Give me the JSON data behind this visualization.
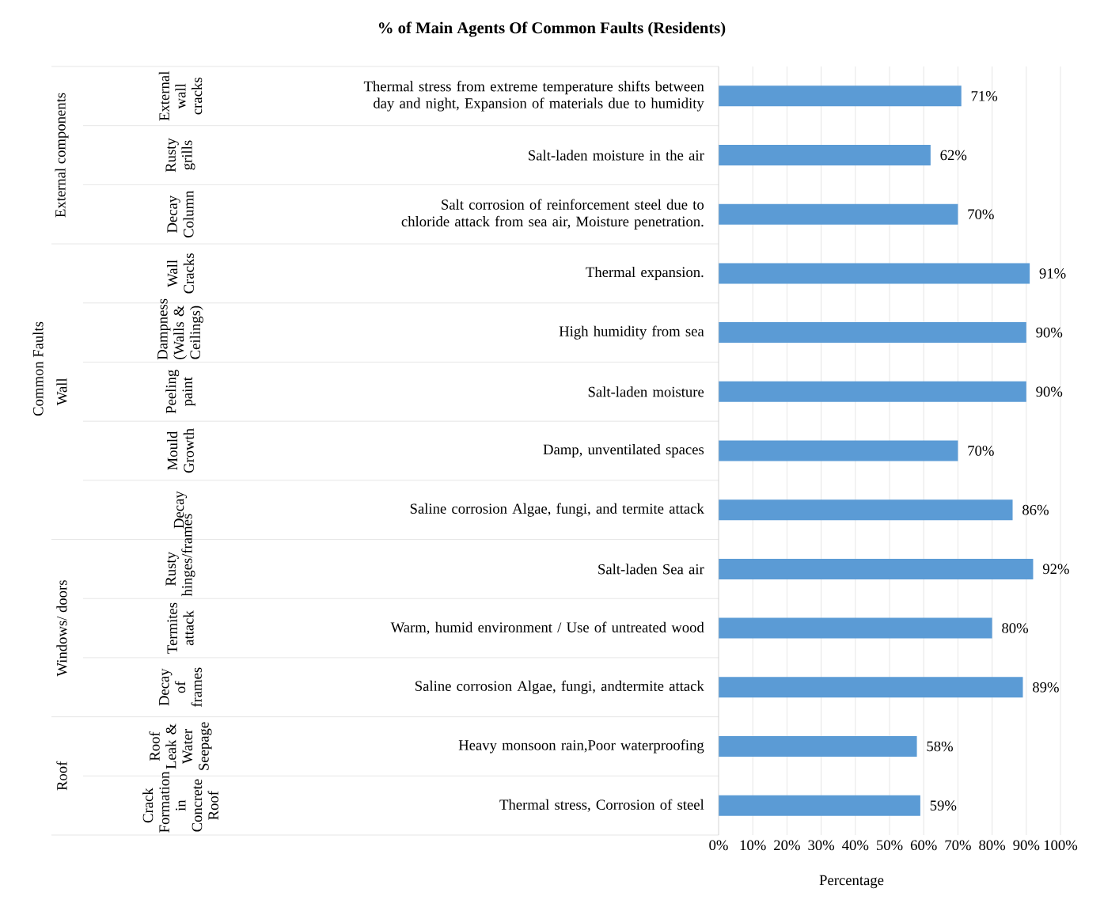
{
  "chart_data": {
    "type": "bar",
    "orientation": "horizontal",
    "title": "% of Main Agents Of Common Faults (Residents)",
    "xlabel": "Percentage",
    "categories": [
      "Thermal stress from extreme temperature shifts between day and night, Expansion of materials due to humidity",
      "Salt-laden moisture in the air",
      "Salt corrosion of reinforcement steel due to chloride attack from sea air, Moisture penetration.",
      "Thermal expansion.",
      "High humidity from sea",
      "Salt-laden moisture",
      "Damp, unventilated spaces",
      "Saline corrosion Algae, fungi, and termite attack",
      "Salt-laden Sea air",
      "Warm, humid environment / Use of untreated wood",
      "Saline corrosion Algae, fungi, andtermite attack",
      "Heavy monsoon rain,Poor waterproofing",
      "Thermal stress, Corrosion of steel"
    ],
    "values": [
      71,
      62,
      70,
      91,
      90,
      90,
      70,
      86,
      92,
      80,
      89,
      58,
      59
    ],
    "value_labels": [
      "71%",
      "62%",
      "70%",
      "91%",
      "90%",
      "90%",
      "70%",
      "86%",
      "92%",
      "80%",
      "89%",
      "58%",
      "59%"
    ],
    "color": "#5b9bd5",
    "xlim": [
      0,
      100
    ],
    "xticks": [
      {
        "value": 0,
        "label": "0%"
      },
      {
        "value": 10,
        "label": "10%"
      },
      {
        "value": 20,
        "label": "20%"
      },
      {
        "value": 30,
        "label": "30%"
      },
      {
        "value": 40,
        "label": "40%"
      },
      {
        "value": 50,
        "label": "50%"
      },
      {
        "value": 60,
        "label": "60%"
      },
      {
        "value": 70,
        "label": "70%"
      },
      {
        "value": 80,
        "label": "80%"
      },
      {
        "value": 90,
        "label": "90%"
      },
      {
        "value": 100,
        "label": "100%"
      }
    ],
    "grid": "x",
    "annotations": [
      "External wall cracks",
      "Rusty grills",
      "Decay Column",
      "Wall Cracks",
      "Dampness (Walls & Ceilings)",
      "Peeling paint",
      "Mould Growth",
      "Decay",
      "Rusty hinges/frames",
      "Termites attack",
      "Decay of frames",
      "Roof Leak & Water Seepage",
      "Crack Formation in Concrete Roof",
      "External components",
      "Wall",
      "Windows/ doors",
      "Roof",
      "Common Faults"
    ]
  }
}
